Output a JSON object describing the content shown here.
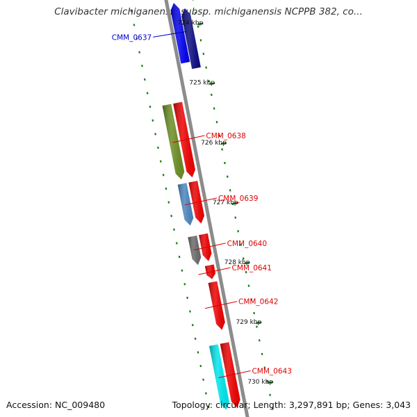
{
  "title": "Clavibacter michiganensis subsp. michiganensis NCPPB 382, co...",
  "footer": {
    "accession": "Accession: NC_009480",
    "topology": "Topology: circular; Length: 3,297,891 bp; Genes: 3,043"
  },
  "colors": {
    "backbone": "#8c8c8c",
    "tick": "#1a7a1a",
    "cds_forward": "#0000ee",
    "cds_forward_dark": "#0b0b80",
    "cds_reverse": "#ee0000",
    "label_blue": "#0000cc",
    "label_red": "#dd0000"
  },
  "scale": {
    "unit": "kbp",
    "ticks": [
      {
        "kbp": 724,
        "label": "724 kbp"
      },
      {
        "kbp": 725,
        "label": "725 kbp"
      },
      {
        "kbp": 726,
        "label": "726 kbp"
      },
      {
        "kbp": 727,
        "label": "727 kbp"
      },
      {
        "kbp": 728,
        "label": "728 kbp"
      },
      {
        "kbp": 729,
        "label": "729 kbp"
      },
      {
        "kbp": 730,
        "label": "730 kbp"
      }
    ]
  },
  "features": [
    {
      "label": "CMM_0637",
      "strand": "forward",
      "labeled": true,
      "labelColor": "#0000cc",
      "start": 723.58,
      "end": 724.58,
      "color": "#0000ee",
      "track": "outer"
    },
    {
      "label": "",
      "strand": "forward",
      "labeled": false,
      "labelColor": "",
      "start": 723.7,
      "end": 724.7,
      "color": "#0b0b80",
      "track": "outer2"
    },
    {
      "label": "CMM_0638",
      "strand": "reverse",
      "labeled": true,
      "labelColor": "#dd0000",
      "start": 725.2,
      "end": 726.45,
      "color": "#ee0000",
      "track": "inner"
    },
    {
      "label": "",
      "strand": "reverse",
      "labeled": false,
      "labelColor": "",
      "start": 725.2,
      "end": 726.45,
      "color": "#6b8e23",
      "track": "inner2"
    },
    {
      "label": "CMM_0639",
      "strand": "reverse",
      "labeled": true,
      "labelColor": "#dd0000",
      "start": 726.52,
      "end": 727.22,
      "color": "#ee0000",
      "track": "inner"
    },
    {
      "label": "",
      "strand": "reverse",
      "labeled": false,
      "labelColor": "",
      "start": 726.52,
      "end": 727.22,
      "color": "#4a86c0",
      "track": "inner2"
    },
    {
      "label": "CMM_0640",
      "strand": "reverse",
      "labeled": true,
      "labelColor": "#dd0000",
      "start": 727.4,
      "end": 727.85,
      "color": "#ee0000",
      "track": "inner"
    },
    {
      "label": "",
      "strand": "reverse",
      "labeled": false,
      "labelColor": "",
      "start": 727.4,
      "end": 727.88,
      "color": "#6a6a6a",
      "track": "inner2"
    },
    {
      "label": "CMM_0641",
      "strand": "reverse",
      "labeled": true,
      "labelColor": "#dd0000",
      "start": 727.92,
      "end": 728.15,
      "color": "#ee0000",
      "track": "inner"
    },
    {
      "label": "CMM_0642",
      "strand": "reverse",
      "labeled": true,
      "labelColor": "#dd0000",
      "start": 728.2,
      "end": 729.0,
      "color": "#ee0000",
      "track": "inner"
    },
    {
      "label": "CMM_0643",
      "strand": "reverse",
      "labeled": true,
      "labelColor": "#dd0000",
      "start": 729.22,
      "end": 730.3,
      "color": "#ee0000",
      "track": "inner"
    },
    {
      "label": "",
      "strand": "reverse",
      "labeled": false,
      "labelColor": "",
      "start": 729.22,
      "end": 730.3,
      "color": "#00e6ee",
      "track": "inner2"
    }
  ]
}
